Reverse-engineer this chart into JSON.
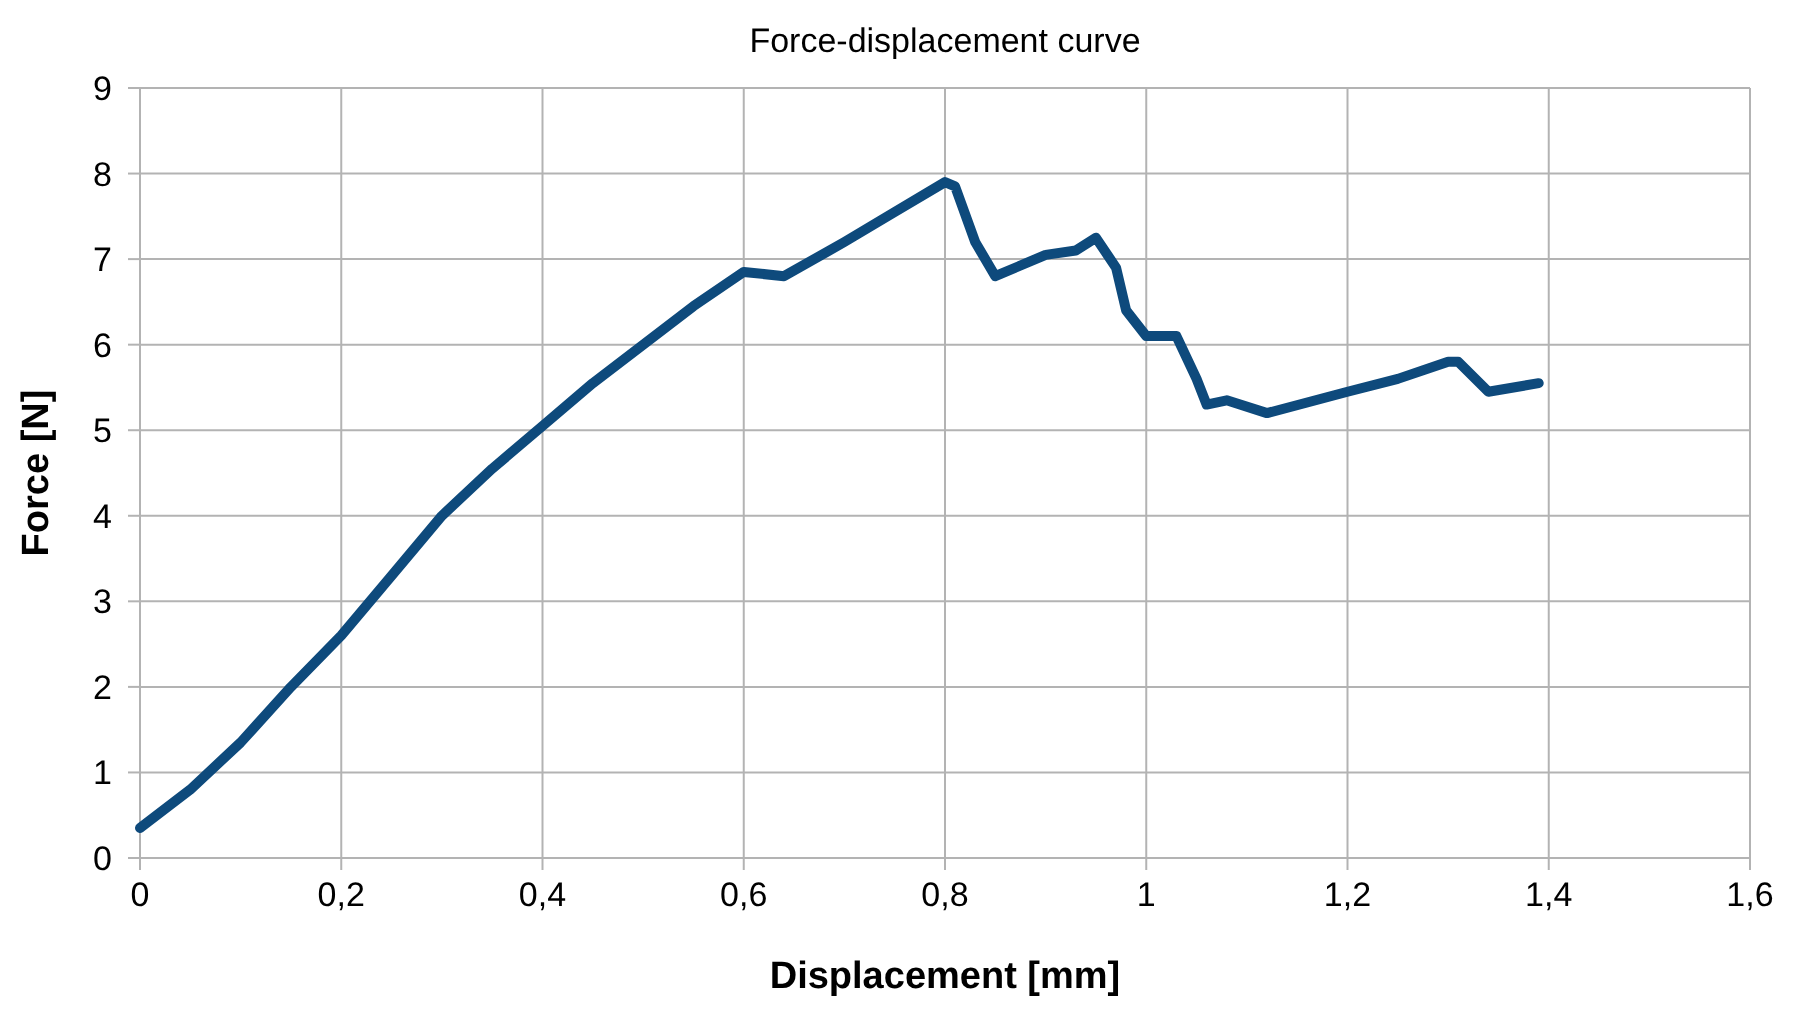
{
  "chart_data": {
    "type": "line",
    "title": "Force-displacement curve",
    "xlabel": "Displacement [mm]",
    "ylabel": "Force [N]",
    "x": [
      0,
      0.05,
      0.1,
      0.15,
      0.2,
      0.25,
      0.3,
      0.35,
      0.4,
      0.45,
      0.5,
      0.55,
      0.6,
      0.64,
      0.7,
      0.75,
      0.8,
      0.81,
      0.83,
      0.85,
      0.9,
      0.93,
      0.95,
      0.97,
      0.98,
      1.0,
      1.03,
      1.05,
      1.06,
      1.08,
      1.12,
      1.2,
      1.25,
      1.3,
      1.31,
      1.34,
      1.39
    ],
    "series": [
      {
        "color": "#0e4a7c",
        "values": [
          0.35,
          0.8,
          1.35,
          2.0,
          2.6,
          3.3,
          4.0,
          4.55,
          5.05,
          5.55,
          6.0,
          6.45,
          6.85,
          6.8,
          7.2,
          7.55,
          7.9,
          7.85,
          7.2,
          6.8,
          7.05,
          7.1,
          7.25,
          6.9,
          6.4,
          6.1,
          6.1,
          5.6,
          5.3,
          5.35,
          5.2,
          5.45,
          5.6,
          5.8,
          5.8,
          5.45,
          5.55
        ]
      }
    ],
    "xlim": [
      0,
      1.6
    ],
    "xticks": [
      0,
      {
        "value": 0.2,
        "label": "0,2"
      },
      {
        "value": 0.4,
        "label": "0,4"
      },
      {
        "value": 0.6,
        "label": "0,6"
      },
      {
        "value": 0.8,
        "label": "0,8"
      },
      1,
      {
        "value": 1.2,
        "label": "1,2"
      },
      {
        "value": 1.4,
        "label": "1,4"
      },
      {
        "value": 1.6,
        "label": "1,6"
      }
    ],
    "ylim": [
      0,
      9
    ],
    "yticks": [
      0,
      1,
      2,
      3,
      4,
      5,
      6,
      7,
      8,
      9
    ],
    "grid": true,
    "marker": "none",
    "line_style": "solid"
  }
}
